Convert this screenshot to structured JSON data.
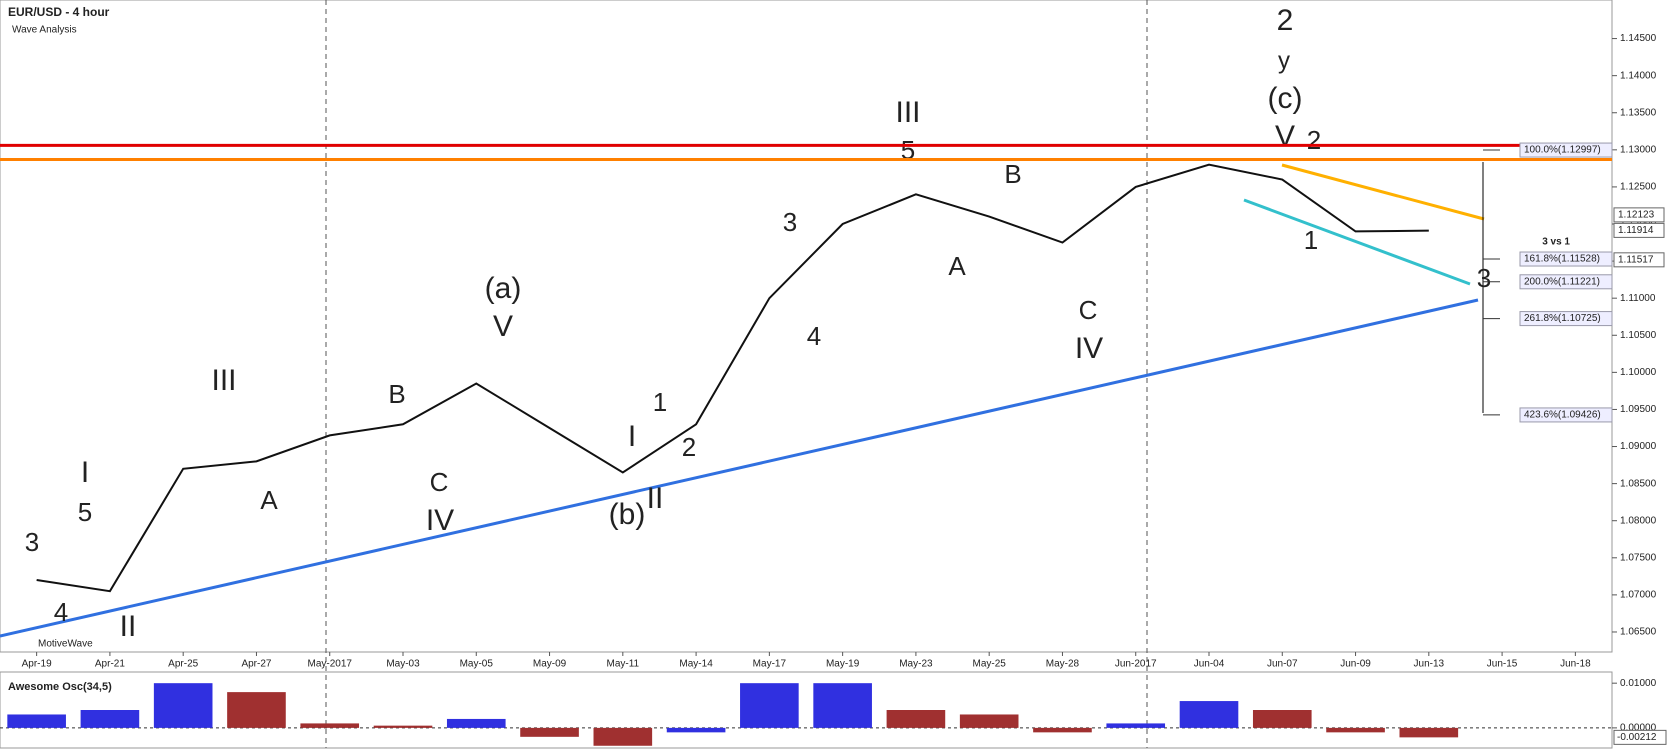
{
  "chart_data": [
    {
      "type": "line",
      "title": "EUR/USD - 4 hour",
      "subtitle": "Wave Analysis",
      "watermark": "MotiveWave",
      "color": "#111111",
      "categories": [
        "Apr-19",
        "Apr-21",
        "Apr-25",
        "Apr-27",
        "May-2017",
        "May-03",
        "May-05",
        "May-09",
        "May-11",
        "May-14",
        "May-17",
        "May-19",
        "May-23",
        "May-25",
        "May-28",
        "Jun-2017",
        "Jun-04",
        "Jun-07",
        "Jun-09",
        "Jun-13",
        "Jun-15",
        "Jun-18"
      ],
      "values": [
        1.072,
        1.0705,
        1.087,
        1.088,
        1.0915,
        1.093,
        1.0985,
        1.0925,
        1.0865,
        1.093,
        1.11,
        1.12,
        1.124,
        1.121,
        1.1175,
        1.125,
        1.128,
        1.126,
        1.119,
        1.1191,
        null,
        null
      ],
      "ylim": [
        1.0623,
        1.1502
      ],
      "yticks": [
        {
          "value": 1.065,
          "label": "1.06500"
        },
        {
          "value": 1.07,
          "label": "1.07000"
        },
        {
          "value": 1.075,
          "label": "1.07500"
        },
        {
          "value": 1.08,
          "label": "1.08000"
        },
        {
          "value": 1.085,
          "label": "1.08500"
        },
        {
          "value": 1.09,
          "label": "1.09000"
        },
        {
          "value": 1.095,
          "label": "1.09500"
        },
        {
          "value": 1.1,
          "label": "1.10000"
        },
        {
          "value": 1.105,
          "label": "1.10500"
        },
        {
          "value": 1.11,
          "label": "1.11000"
        },
        {
          "value": 1.115,
          "label": "1.11500"
        },
        {
          "value": 1.12,
          "label": "1.12000"
        },
        {
          "value": 1.125,
          "label": "1.12500"
        },
        {
          "value": 1.13,
          "label": "1.13000"
        },
        {
          "value": 1.135,
          "label": "1.13500"
        },
        {
          "value": 1.14,
          "label": "1.14000"
        },
        {
          "value": 1.145,
          "label": "1.14500"
        }
      ],
      "hlines": [
        {
          "value": 1.1306,
          "color": "#e00000"
        },
        {
          "value": 1.1287,
          "color": "#ff8000"
        }
      ],
      "price_tags": [
        {
          "value": 1.12123,
          "label": "1.12123"
        },
        {
          "value": 1.11914,
          "label": "1.11914"
        },
        {
          "value": 1.11517,
          "label": "1.11517"
        }
      ],
      "fib_levels": [
        {
          "value": 1.12997,
          "label": "100.0%(1.12997)"
        },
        {
          "value": 1.11528,
          "label": "161.8%(1.11528)"
        },
        {
          "value": 1.11221,
          "label": "200.0%(1.11221)"
        },
        {
          "value": 1.10725,
          "label": "261.8%(1.10725)"
        },
        {
          "value": 1.09426,
          "label": "423.6%(1.09426)"
        }
      ],
      "fib_note": "3 vs 1",
      "wave_labels": [
        {
          "text": "2",
          "color": "#1a8a1a"
        },
        {
          "text": "y",
          "color": "#b5651d"
        },
        {
          "text": "(c)",
          "color": "#33c0cc"
        },
        {
          "text": "V",
          "color": "#7a1a7a"
        },
        {
          "text": "2",
          "color": "#1030e0"
        },
        {
          "text": "III",
          "color": "#7a1a7a"
        },
        {
          "text": "5",
          "color": "#1030e0"
        },
        {
          "text": "B",
          "color": "#1030e0"
        },
        {
          "text": "3",
          "color": "#1030e0"
        },
        {
          "text": "A",
          "color": "#1030e0"
        },
        {
          "text": "4",
          "color": "#1030e0"
        },
        {
          "text": "C",
          "color": "#1030e0"
        },
        {
          "text": "IV",
          "color": "#7a1a7a"
        },
        {
          "text": "1",
          "color": "#1030e0"
        },
        {
          "text": "3",
          "color": "#1030e0"
        },
        {
          "text": "(a)",
          "color": "#33c0cc"
        },
        {
          "text": "V",
          "color": "#7a1a7a"
        },
        {
          "text": "III",
          "color": "#7a1a7a"
        },
        {
          "text": "B",
          "color": "#1030e0"
        },
        {
          "text": "A",
          "color": "#1030e0"
        },
        {
          "text": "C",
          "color": "#1030e0"
        },
        {
          "text": "IV",
          "color": "#7a1a7a"
        },
        {
          "text": "1",
          "color": "#1030e0"
        },
        {
          "text": "2",
          "color": "#1030e0"
        },
        {
          "text": "I",
          "color": "#7a1a7a"
        },
        {
          "text": "II",
          "color": "#7a1a7a"
        },
        {
          "text": "(b)",
          "color": "#33c0cc"
        },
        {
          "text": "3",
          "color": "#1030e0"
        },
        {
          "text": "5",
          "color": "#1030e0"
        },
        {
          "text": "I",
          "color": "#7a1a7a"
        },
        {
          "text": "4",
          "color": "#1030e0"
        },
        {
          "text": "II",
          "color": "#7a1a7a"
        }
      ]
    },
    {
      "type": "bar",
      "title": "Awesome Osc(34,5)",
      "up_color": "#3030e0",
      "down_color": "#a03030",
      "values": [
        0.003,
        0.004,
        0.01,
        0.008,
        0.001,
        0.0005,
        0.002,
        -0.002,
        -0.004,
        -0.001,
        0.01,
        0.01,
        0.004,
        0.003,
        -0.001,
        0.001,
        0.006,
        0.004,
        -0.001,
        -0.00212,
        null,
        null
      ],
      "ylim": [
        -0.0045,
        0.0125
      ],
      "yticks": [
        {
          "value": 0.01,
          "label": "0.01000"
        },
        {
          "value": 0,
          "label": "0.00000"
        }
      ],
      "value_tag": {
        "value": -0.00212,
        "label": "-0.00212"
      }
    }
  ]
}
